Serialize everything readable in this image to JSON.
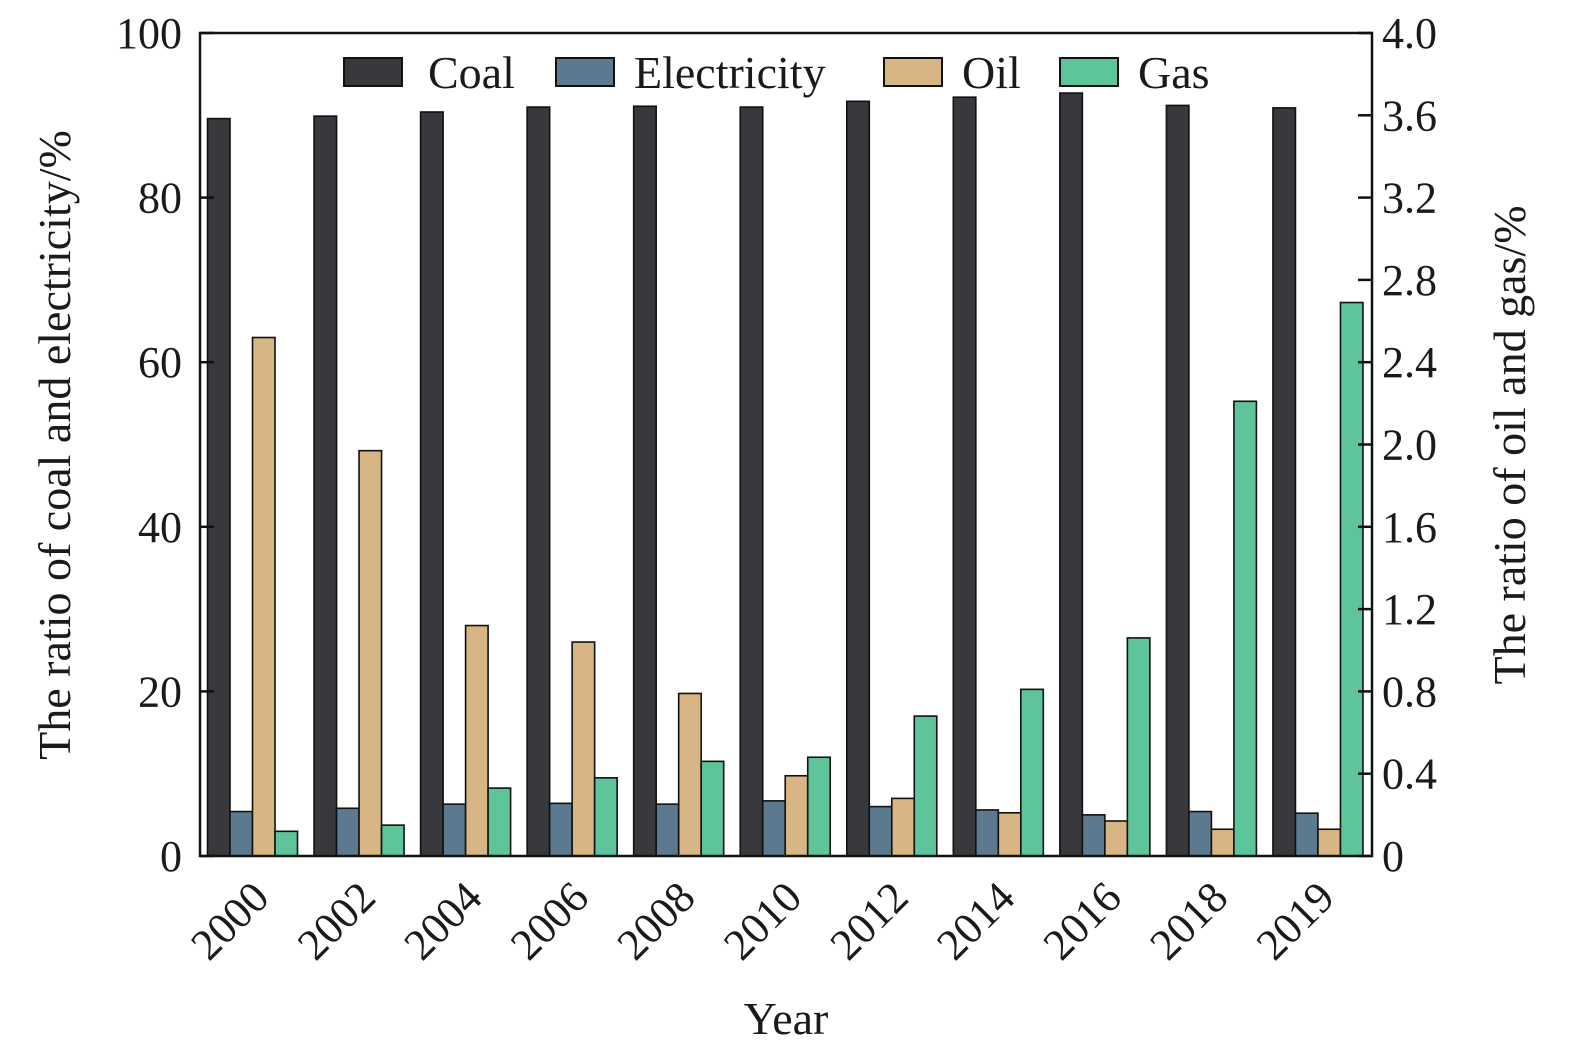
{
  "chart_data": {
    "type": "bar",
    "xlabel": "Year",
    "ylabel_left": "The ratio of coal and electricity/%",
    "ylabel_right": "The ratio of oil and gas/%",
    "ylim_left": [
      0,
      100
    ],
    "ylim_right": [
      0,
      4.0
    ],
    "yticks_left": [
      "0",
      "20",
      "40",
      "60",
      "80",
      "100"
    ],
    "yticks_right": [
      "0",
      "0.4",
      "0.8",
      "1.2",
      "1.6",
      "2.0",
      "2.4",
      "2.8",
      "3.2",
      "3.6",
      "4.0"
    ],
    "categories": [
      "2000",
      "2002",
      "2004",
      "2006",
      "2008",
      "2010",
      "2012",
      "2014",
      "2016",
      "2018",
      "2019"
    ],
    "grid": false,
    "legend_position": "top",
    "series": [
      {
        "name": "Coal",
        "axis": "left",
        "color": "#38393d",
        "values": [
          89.6,
          89.9,
          90.4,
          91.0,
          91.1,
          91.0,
          91.7,
          92.2,
          92.7,
          91.2,
          90.9
        ]
      },
      {
        "name": "Electricity",
        "axis": "left",
        "color": "#5b7a90",
        "values": [
          5.4,
          5.8,
          6.3,
          6.4,
          6.3,
          6.7,
          6.0,
          5.6,
          5.0,
          5.4,
          5.2
        ]
      },
      {
        "name": "Oil",
        "axis": "right",
        "color": "#d8b584",
        "values": [
          2.52,
          1.97,
          1.12,
          1.04,
          0.79,
          0.39,
          0.28,
          0.21,
          0.17,
          0.13,
          0.13
        ]
      },
      {
        "name": "Gas",
        "axis": "right",
        "color": "#5ec499",
        "values": [
          0.12,
          0.15,
          0.33,
          0.38,
          0.46,
          0.48,
          0.68,
          0.81,
          1.06,
          2.21,
          2.69
        ]
      }
    ]
  }
}
